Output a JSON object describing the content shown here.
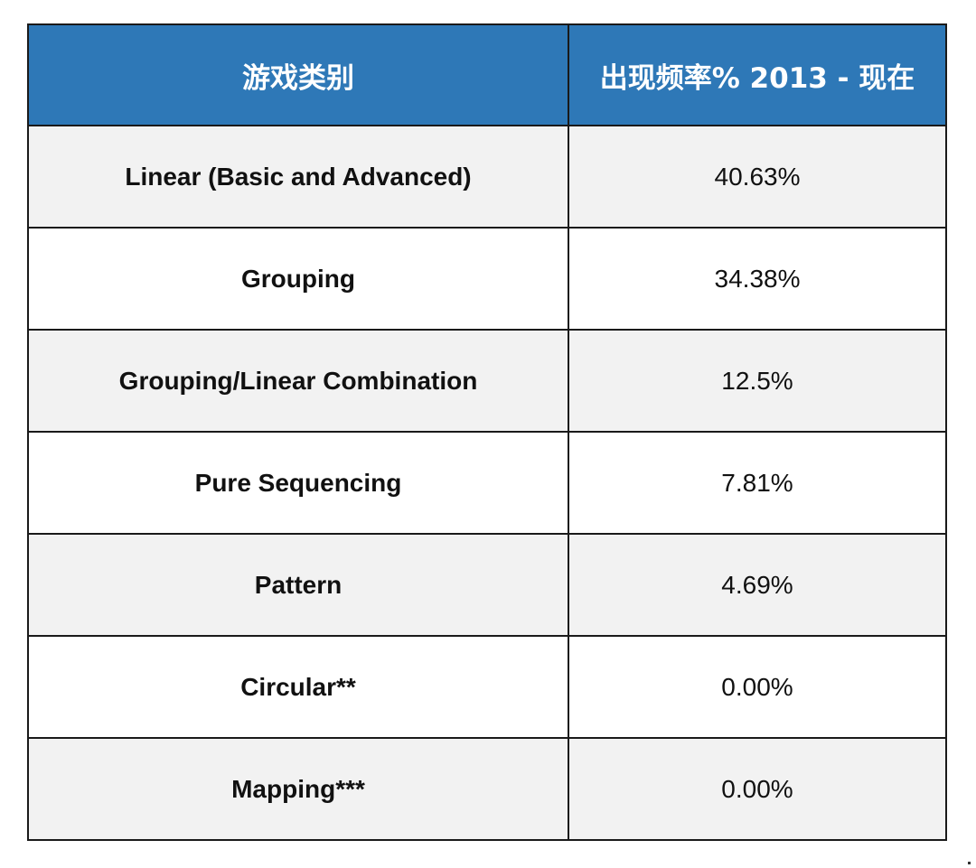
{
  "table": {
    "header": {
      "category": "游戏类别",
      "frequency": "出现频率% 2013 - 现在"
    },
    "rows": [
      {
        "category": "Linear (Basic and Advanced)",
        "frequency": "40.63%"
      },
      {
        "category": "Grouping",
        "frequency": "34.38%"
      },
      {
        "category": "Grouping/Linear Combination",
        "frequency": "12.5%"
      },
      {
        "category": "Pure Sequencing",
        "frequency": "7.81%"
      },
      {
        "category": "Pattern",
        "frequency": "4.69%"
      },
      {
        "category": "Circular**",
        "frequency": "0.00%"
      },
      {
        "category": "Mapping***",
        "frequency": "0.00%"
      }
    ]
  },
  "colors": {
    "header_bg": "#2e78b7",
    "header_text": "#ffffff",
    "row_shaded": "#f2f2f2",
    "row_plain": "#ffffff",
    "border": "#1a1a1a"
  }
}
